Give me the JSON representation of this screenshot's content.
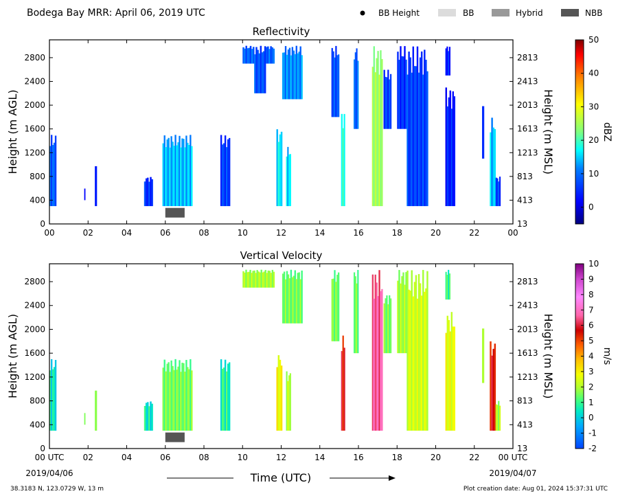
{
  "header": {
    "title": "Bodega Bay MRR:  April 06, 2019 UTC",
    "legend": [
      {
        "label": "BB Height",
        "kind": "dot",
        "color": "#000000"
      },
      {
        "label": "BB",
        "kind": "swatch",
        "color": "#dcdcdc"
      },
      {
        "label": "Hybrid",
        "kind": "swatch",
        "color": "#999999"
      },
      {
        "label": "NBB",
        "kind": "swatch",
        "color": "#555555"
      }
    ]
  },
  "footer": {
    "location": "38.3183 N, 123.0729 W, 13 m",
    "creation": "Plot creation date: Aug 01, 2024 15:37:31 UTC",
    "x_title": "Time (UTC)",
    "start_date": "2019/04/06",
    "end_date": "2019/04/07"
  },
  "chart_data": [
    {
      "type": "heatmap",
      "title": "Reflectivity",
      "xlabel": "",
      "ylabel": "Height (m AGL)",
      "ylabel_right": "Height (m MSL)",
      "x_ticks": [
        "00",
        "02",
        "04",
        "06",
        "08",
        "10",
        "12",
        "14",
        "16",
        "18",
        "20",
        "22",
        "00"
      ],
      "x_range_hours": [
        0,
        24
      ],
      "y_ticks_agl": [
        "0",
        "400",
        "800",
        "1200",
        "1600",
        "2000",
        "2400",
        "2800"
      ],
      "y_ticks_msl": [
        "13",
        "413",
        "813",
        "1213",
        "1613",
        "2013",
        "2413",
        "2813"
      ],
      "y_range_m": [
        0,
        3100
      ],
      "colorbar": {
        "label": "dBZ",
        "range": [
          -5,
          50
        ],
        "ticks": [
          "0",
          "10",
          "20",
          "30",
          "40",
          "50"
        ]
      },
      "bright_band": [
        {
          "start_hour": 6.0,
          "end_hour": 7.0,
          "category": "NBB"
        }
      ],
      "echoes": [
        {
          "start_hour": 0.0,
          "end_hour": 0.35,
          "base_m": 300,
          "top_m": 1500,
          "level": 6
        },
        {
          "start_hour": 1.8,
          "end_hour": 1.85,
          "base_m": 400,
          "top_m": 600,
          "level": 2
        },
        {
          "start_hour": 2.35,
          "end_hour": 2.45,
          "base_m": 300,
          "top_m": 1000,
          "level": 3
        },
        {
          "start_hour": 4.9,
          "end_hour": 5.35,
          "base_m": 300,
          "top_m": 800,
          "level": 3
        },
        {
          "start_hour": 5.85,
          "end_hour": 7.4,
          "base_m": 300,
          "top_m": 1500,
          "level": 10
        },
        {
          "start_hour": 8.85,
          "end_hour": 9.35,
          "base_m": 300,
          "top_m": 1500,
          "level": 4
        },
        {
          "start_hour": 10.0,
          "end_hour": 10.6,
          "base_m": 2700,
          "top_m": 3000,
          "level": 6
        },
        {
          "start_hour": 10.6,
          "end_hour": 11.2,
          "base_m": 2200,
          "top_m": 3000,
          "level": 5
        },
        {
          "start_hour": 11.2,
          "end_hour": 11.65,
          "base_m": 2700,
          "top_m": 3000,
          "level": 6
        },
        {
          "start_hour": 11.75,
          "end_hour": 12.05,
          "base_m": 300,
          "top_m": 1600,
          "level": 12
        },
        {
          "start_hour": 12.05,
          "end_hour": 13.1,
          "base_m": 2100,
          "top_m": 3000,
          "level": 8
        },
        {
          "start_hour": 12.25,
          "end_hour": 12.5,
          "base_m": 300,
          "top_m": 1300,
          "level": 11
        },
        {
          "start_hour": 14.6,
          "end_hour": 15.0,
          "base_m": 1800,
          "top_m": 3000,
          "level": 5
        },
        {
          "start_hour": 15.1,
          "end_hour": 15.3,
          "base_m": 300,
          "top_m": 1900,
          "level": 14
        },
        {
          "start_hour": 15.75,
          "end_hour": 16.0,
          "base_m": 1600,
          "top_m": 3000,
          "level": 6
        },
        {
          "start_hour": 16.7,
          "end_hour": 17.25,
          "base_m": 300,
          "top_m": 3000,
          "level": 20
        },
        {
          "start_hour": 17.3,
          "end_hour": 17.7,
          "base_m": 1600,
          "top_m": 2600,
          "level": 4
        },
        {
          "start_hour": 18.0,
          "end_hour": 18.5,
          "base_m": 1600,
          "top_m": 3000,
          "level": 3
        },
        {
          "start_hour": 18.5,
          "end_hour": 19.6,
          "base_m": 300,
          "top_m": 3000,
          "level": 4
        },
        {
          "start_hour": 20.5,
          "end_hour": 20.75,
          "base_m": 2500,
          "top_m": 3000,
          "level": 2
        },
        {
          "start_hour": 20.5,
          "end_hour": 21.0,
          "base_m": 300,
          "top_m": 2300,
          "level": 2
        },
        {
          "start_hour": 22.4,
          "end_hour": 22.5,
          "base_m": 1100,
          "top_m": 2100,
          "level": 2
        },
        {
          "start_hour": 22.8,
          "end_hour": 23.1,
          "base_m": 300,
          "top_m": 1800,
          "level": 10
        },
        {
          "start_hour": 23.1,
          "end_hour": 23.35,
          "base_m": 300,
          "top_m": 800,
          "level": 4
        }
      ]
    },
    {
      "type": "heatmap",
      "title": "Vertical Velocity",
      "xlabel": "Time (UTC)",
      "ylabel": "Height (m AGL)",
      "ylabel_right": "Height (m MSL)",
      "x_ticks": [
        "00 UTC",
        "02",
        "04",
        "06",
        "08",
        "10",
        "12",
        "14",
        "16",
        "18",
        "20",
        "22",
        "00 UTC"
      ],
      "x_range_hours": [
        0,
        24
      ],
      "y_ticks_agl": [
        "0",
        "400",
        "800",
        "1200",
        "1600",
        "2000",
        "2400",
        "2800"
      ],
      "y_ticks_msl": [
        "13",
        "413",
        "813",
        "1213",
        "1613",
        "2013",
        "2413",
        "2813"
      ],
      "y_range_m": [
        0,
        3100
      ],
      "colorbar": {
        "label": "m/s",
        "range": [
          -2,
          10
        ],
        "ticks": [
          "-2",
          "-1",
          "0",
          "1",
          "2",
          "3",
          "4",
          "5",
          "6",
          "7",
          "8",
          "9",
          "10"
        ]
      },
      "bright_band": [
        {
          "start_hour": 6.0,
          "end_hour": 7.0,
          "category": "NBB"
        }
      ],
      "echoes": [
        {
          "start_hour": 0.0,
          "end_hour": 0.35,
          "base_m": 300,
          "top_m": 1500,
          "level": 0.5
        },
        {
          "start_hour": 1.8,
          "end_hour": 1.85,
          "base_m": 400,
          "top_m": 600,
          "level": 2
        },
        {
          "start_hour": 2.35,
          "end_hour": 2.45,
          "base_m": 300,
          "top_m": 1000,
          "level": 2
        },
        {
          "start_hour": 4.9,
          "end_hour": 5.35,
          "base_m": 300,
          "top_m": 800,
          "level": 0.5
        },
        {
          "start_hour": 5.85,
          "end_hour": 7.4,
          "base_m": 300,
          "top_m": 1500,
          "level": 1.5
        },
        {
          "start_hour": 8.85,
          "end_hour": 9.35,
          "base_m": 300,
          "top_m": 1500,
          "level": 0.8
        },
        {
          "start_hour": 10.0,
          "end_hour": 11.65,
          "base_m": 2700,
          "top_m": 3000,
          "level": 2
        },
        {
          "start_hour": 11.75,
          "end_hour": 12.05,
          "base_m": 300,
          "top_m": 1600,
          "level": 3
        },
        {
          "start_hour": 12.05,
          "end_hour": 13.1,
          "base_m": 2100,
          "top_m": 3000,
          "level": 1.5
        },
        {
          "start_hour": 12.25,
          "end_hour": 12.5,
          "base_m": 300,
          "top_m": 1300,
          "level": 2.2
        },
        {
          "start_hour": 14.6,
          "end_hour": 15.0,
          "base_m": 1800,
          "top_m": 3000,
          "level": 1.5
        },
        {
          "start_hour": 15.1,
          "end_hour": 15.3,
          "base_m": 300,
          "top_m": 1900,
          "level": 6
        },
        {
          "start_hour": 15.75,
          "end_hour": 16.0,
          "base_m": 1600,
          "top_m": 3000,
          "level": 1.5
        },
        {
          "start_hour": 16.7,
          "end_hour": 17.25,
          "base_m": 300,
          "top_m": 3000,
          "level": 7
        },
        {
          "start_hour": 17.3,
          "end_hour": 17.7,
          "base_m": 1600,
          "top_m": 2600,
          "level": 1.5
        },
        {
          "start_hour": 18.0,
          "end_hour": 18.5,
          "base_m": 1600,
          "top_m": 3000,
          "level": 2
        },
        {
          "start_hour": 18.5,
          "end_hour": 19.6,
          "base_m": 300,
          "top_m": 3000,
          "level": 2.5
        },
        {
          "start_hour": 20.5,
          "end_hour": 20.75,
          "base_m": 2500,
          "top_m": 3000,
          "level": 1
        },
        {
          "start_hour": 20.5,
          "end_hour": 21.0,
          "base_m": 300,
          "top_m": 2300,
          "level": 2.8
        },
        {
          "start_hour": 22.4,
          "end_hour": 22.5,
          "base_m": 1100,
          "top_m": 2100,
          "level": 2
        },
        {
          "start_hour": 22.8,
          "end_hour": 23.1,
          "base_m": 300,
          "top_m": 1800,
          "level": 6
        },
        {
          "start_hour": 23.1,
          "end_hour": 23.35,
          "base_m": 300,
          "top_m": 800,
          "level": 2
        }
      ]
    }
  ]
}
